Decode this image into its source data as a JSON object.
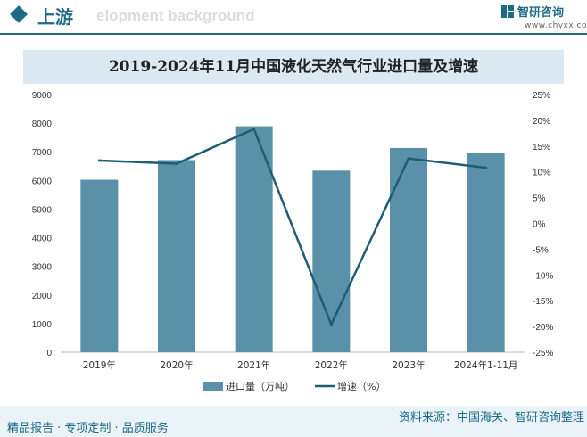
{
  "header": {
    "section_title": "上游",
    "watermark_text": "elopment background",
    "brand_name": "智研咨询",
    "brand_url": "www.chyxx.com"
  },
  "footer": {
    "left": "精品报告 · 专项定制 · 品质服务",
    "right": "资料来源：中国海关、智研咨询整理"
  },
  "colors": {
    "bar": "#5b91a8",
    "line": "#1d5e74",
    "brand": "#1f6a86",
    "title_band": "#dce9f2"
  },
  "chart_data": {
    "type": "bar",
    "title": "2019-2024年11月中国液化天然气行业进口量及增速",
    "categories": [
      "2019年",
      "2020年",
      "2021年",
      "2022年",
      "2023年",
      "2024年1-11月"
    ],
    "series": [
      {
        "name": "进口量（万吨）",
        "type": "bar",
        "axis": "left",
        "values": [
          6025,
          6713,
          7893,
          6344,
          7132,
          6966
        ]
      },
      {
        "name": "增速（%）",
        "type": "line",
        "axis": "right",
        "values": [
          12.2,
          11.6,
          18.3,
          -19.6,
          12.6,
          10.8
        ]
      }
    ],
    "y_left": {
      "min": 0,
      "max": 9000,
      "ticks": [
        "0",
        "1000",
        "2000",
        "3000",
        "4000",
        "5000",
        "6000",
        "7000",
        "8000",
        "9000"
      ]
    },
    "y_right": {
      "min": -25,
      "max": 25,
      "ticks": [
        "-25%",
        "-20%",
        "-15%",
        "-10%",
        "-5%",
        "0%",
        "5%",
        "10%",
        "15%",
        "20%",
        "25%"
      ]
    },
    "grid": false,
    "legend_position": "bottom"
  }
}
